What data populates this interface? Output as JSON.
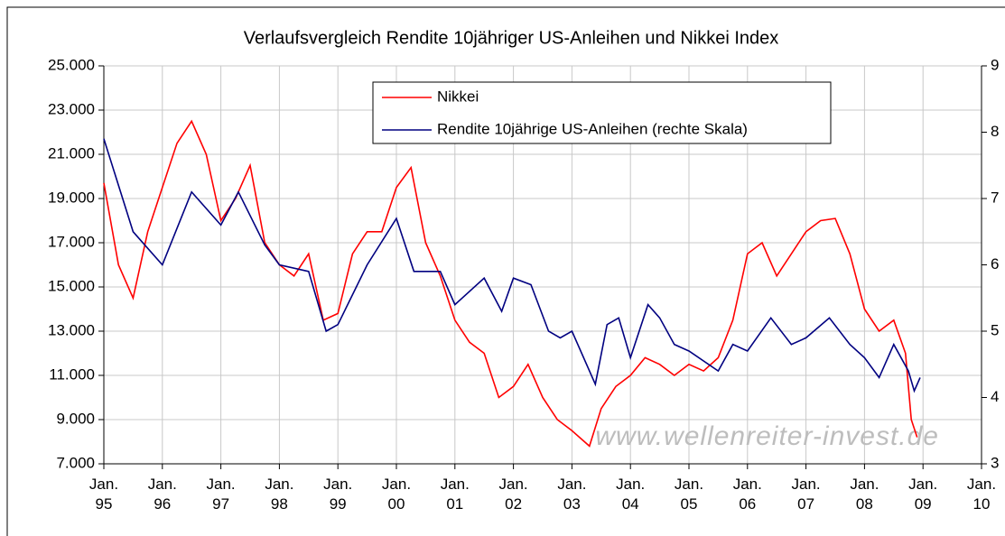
{
  "chart_data": {
    "type": "line",
    "title": "Verlaufsvergleich Rendite 10jähriger US-Anleihen und Nikkei Index",
    "annotation": "www.wellenreiter-invest.de",
    "legend": "top",
    "grid": true,
    "xlim": [
      1995,
      2010
    ],
    "xticks": [
      {
        "value": 1995,
        "label": "Jan. 95"
      },
      {
        "value": 1996,
        "label": "Jan. 96"
      },
      {
        "value": 1997,
        "label": "Jan. 97"
      },
      {
        "value": 1998,
        "label": "Jan. 98"
      },
      {
        "value": 1999,
        "label": "Jan. 99"
      },
      {
        "value": 2000,
        "label": "Jan. 00"
      },
      {
        "value": 2001,
        "label": "Jan. 01"
      },
      {
        "value": 2002,
        "label": "Jan. 02"
      },
      {
        "value": 2003,
        "label": "Jan. 03"
      },
      {
        "value": 2004,
        "label": "Jan. 04"
      },
      {
        "value": 2005,
        "label": "Jan. 05"
      },
      {
        "value": 2006,
        "label": "Jan. 06"
      },
      {
        "value": 2007,
        "label": "Jan. 07"
      },
      {
        "value": 2008,
        "label": "Jan. 08"
      },
      {
        "value": 2009,
        "label": "Jan. 09"
      },
      {
        "value": 2010,
        "label": "Jan. 10"
      }
    ],
    "ylim": [
      7000,
      25000
    ],
    "yticks": [
      {
        "value": 7000,
        "label": "7.000"
      },
      {
        "value": 9000,
        "label": "9.000"
      },
      {
        "value": 11000,
        "label": "11.000"
      },
      {
        "value": 13000,
        "label": "13.000"
      },
      {
        "value": 15000,
        "label": "15.000"
      },
      {
        "value": 17000,
        "label": "17.000"
      },
      {
        "value": 19000,
        "label": "19.000"
      },
      {
        "value": 21000,
        "label": "21.000"
      },
      {
        "value": 23000,
        "label": "23.000"
      },
      {
        "value": 25000,
        "label": "25.000"
      }
    ],
    "y2lim": [
      3,
      9
    ],
    "y2ticks": [
      3,
      4,
      5,
      6,
      7,
      8,
      9
    ],
    "series": [
      {
        "name": "Nikkei",
        "color": "#ff0000",
        "x": [
          1995.0,
          1995.25,
          1995.5,
          1995.75,
          1996.0,
          1996.25,
          1996.5,
          1996.75,
          1997.0,
          1997.25,
          1997.5,
          1997.75,
          1998.0,
          1998.25,
          1998.5,
          1998.75,
          1999.0,
          1999.25,
          1999.5,
          1999.75,
          2000.0,
          2000.25,
          2000.5,
          2000.75,
          2001.0,
          2001.25,
          2001.5,
          2001.75,
          2002.0,
          2002.25,
          2002.5,
          2002.75,
          2003.0,
          2003.3,
          2003.5,
          2003.75,
          2004.0,
          2004.25,
          2004.5,
          2004.75,
          2005.0,
          2005.25,
          2005.5,
          2005.75,
          2006.0,
          2006.25,
          2006.5,
          2006.75,
          2007.0,
          2007.25,
          2007.5,
          2007.75,
          2008.0,
          2008.25,
          2008.5,
          2008.7,
          2008.8,
          2008.9
        ],
        "values": [
          19700,
          16000,
          14500,
          17500,
          19500,
          21500,
          22500,
          21000,
          18000,
          19000,
          20500,
          17000,
          16000,
          15500,
          16500,
          13500,
          13800,
          16500,
          17500,
          17500,
          19500,
          20400,
          17000,
          15500,
          13500,
          12500,
          12000,
          10000,
          10500,
          11500,
          10000,
          9000,
          8500,
          7800,
          9500,
          10500,
          11000,
          11800,
          11500,
          11000,
          11500,
          11200,
          11800,
          13500,
          16500,
          17000,
          15500,
          16500,
          17500,
          18000,
          18100,
          16500,
          14000,
          13000,
          13500,
          12000,
          9000,
          8200
        ]
      },
      {
        "name": "Rendite 10jährige US-Anleihen (rechte Skala)",
        "color": "#000080",
        "axis": "y2",
        "x": [
          1995.0,
          1995.5,
          1996.0,
          1996.5,
          1997.0,
          1997.3,
          1997.75,
          1998.0,
          1998.5,
          1998.8,
          1999.0,
          1999.5,
          2000.0,
          2000.3,
          2000.75,
          2001.0,
          2001.5,
          2001.8,
          2002.0,
          2002.3,
          2002.6,
          2002.8,
          2003.0,
          2003.4,
          2003.6,
          2003.8,
          2004.0,
          2004.3,
          2004.5,
          2004.75,
          2005.0,
          2005.5,
          2005.75,
          2006.0,
          2006.4,
          2006.75,
          2007.0,
          2007.4,
          2007.75,
          2008.0,
          2008.25,
          2008.5,
          2008.75,
          2008.85,
          2008.95
        ],
        "values": [
          7.9,
          6.5,
          6.0,
          7.1,
          6.6,
          7.1,
          6.3,
          6.0,
          5.9,
          5.0,
          5.1,
          6.0,
          6.7,
          5.9,
          5.9,
          5.4,
          5.8,
          5.3,
          5.8,
          5.7,
          5.0,
          4.9,
          5.0,
          4.2,
          5.1,
          5.2,
          4.6,
          5.4,
          5.2,
          4.8,
          4.7,
          4.4,
          4.8,
          4.7,
          5.2,
          4.8,
          4.9,
          5.2,
          4.8,
          4.6,
          4.3,
          4.8,
          4.4,
          4.1,
          4.3
        ]
      }
    ]
  }
}
